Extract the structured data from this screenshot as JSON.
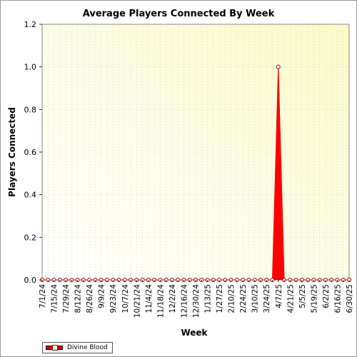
{
  "chart_data": {
    "type": "area",
    "title": "Average Players Connected By Week",
    "xlabel": "Week",
    "ylabel": "Players Connected",
    "ylim": [
      0,
      1.2
    ],
    "yticks": [
      "0.0",
      "0.2",
      "0.4",
      "0.6",
      "0.8",
      "1.0",
      "1.2"
    ],
    "grid": true,
    "legend_position": "bottom-left",
    "x": [
      "7/1/24",
      "7/8/24",
      "7/15/24",
      "7/22/24",
      "7/29/24",
      "8/5/24",
      "8/12/24",
      "8/19/24",
      "8/26/24",
      "9/2/24",
      "9/9/24",
      "9/16/24",
      "9/23/24",
      "9/30/24",
      "10/7/24",
      "10/14/24",
      "10/21/24",
      "10/28/24",
      "11/4/24",
      "11/11/24",
      "11/18/24",
      "11/25/24",
      "12/2/24",
      "12/9/24",
      "12/16/24",
      "12/23/24",
      "12/30/24",
      "1/6/25",
      "1/13/25",
      "1/20/25",
      "1/27/25",
      "2/3/25",
      "2/10/25",
      "2/17/25",
      "2/24/25",
      "3/3/25",
      "3/10/25",
      "3/17/25",
      "3/24/25",
      "3/31/25",
      "4/7/25",
      "4/14/25",
      "4/21/25",
      "4/28/25",
      "5/5/25",
      "5/12/25",
      "5/19/25",
      "5/26/25",
      "6/2/25",
      "6/9/25",
      "6/16/25",
      "6/23/25",
      "6/30/25"
    ],
    "x_tick_labels": [
      "7/1/24",
      "7/15/24",
      "7/29/24",
      "8/12/24",
      "8/26/24",
      "9/9/24",
      "9/23/24",
      "10/7/24",
      "10/21/24",
      "11/4/24",
      "11/18/24",
      "12/2/24",
      "12/16/24",
      "12/30/24",
      "1/13/25",
      "1/27/25",
      "2/10/25",
      "2/24/25",
      "3/10/25",
      "3/24/25",
      "4/7/25",
      "4/21/25",
      "5/5/25",
      "5/19/25",
      "6/2/25",
      "6/16/25",
      "6/30/25"
    ],
    "series": [
      {
        "name": "Divine Blood",
        "color": "#ff0000",
        "values": [
          0,
          0,
          0,
          0,
          0,
          0,
          0,
          0,
          0,
          0,
          0,
          0,
          0,
          0,
          0,
          0,
          0,
          0,
          0,
          0,
          0,
          0,
          0,
          0,
          0,
          0,
          0,
          0,
          0,
          0,
          0,
          0,
          0,
          0,
          0,
          0,
          0,
          0,
          0,
          0,
          1,
          0,
          0,
          0,
          0,
          0,
          0,
          0,
          0,
          0,
          0,
          0,
          0
        ]
      }
    ],
    "colors": {
      "plot_bg_light": "#ffffff",
      "plot_bg_warm": "#fafac8",
      "grid": "#c8c8c8"
    }
  }
}
